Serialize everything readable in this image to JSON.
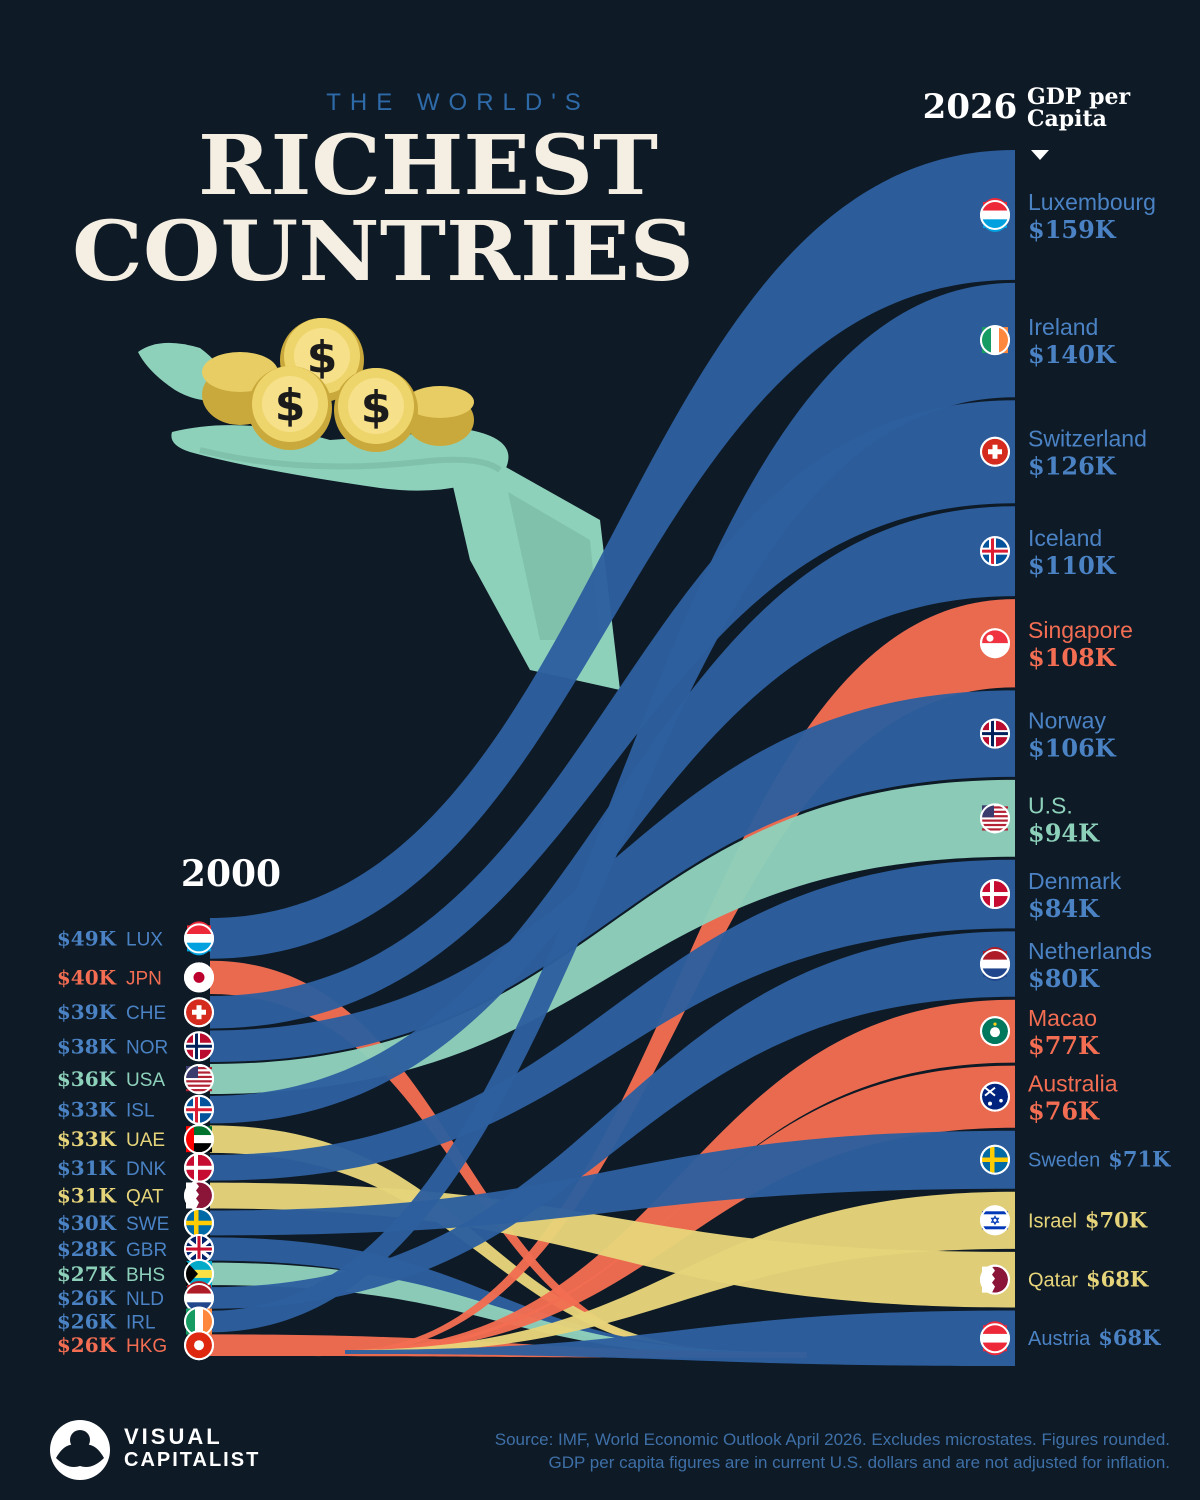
{
  "header": {
    "kicker": "THE WORLD'S",
    "title_line1": "RICHEST",
    "title_line2": "COUNTRIES"
  },
  "labels": {
    "year_2000": "2000",
    "year_2026": "2026",
    "gdp_line1": "GDP per",
    "gdp_line2": "Capita"
  },
  "colors": {
    "background": "#0e1a26",
    "blue": "#2d5f9e",
    "orange": "#f26d52",
    "mint": "#8ed1bb",
    "yellow": "#e6d47a",
    "title": "#f4efe2",
    "kicker": "#2f6aa8"
  },
  "chart_data": {
    "type": "bump",
    "title": "THE WORLD'S RICHEST COUNTRIES",
    "unit": "GDP per Capita",
    "periods": [
      "2000",
      "2026"
    ],
    "left": [
      {
        "code": "LUX",
        "label": "$49K",
        "value": 49,
        "color": "blue",
        "flag": "luxembourg-flag"
      },
      {
        "code": "JPN",
        "label": "$40K",
        "value": 40,
        "color": "orange",
        "flag": "japan-flag"
      },
      {
        "code": "CHE",
        "label": "$39K",
        "value": 39,
        "color": "blue",
        "flag": "switzerland-flag"
      },
      {
        "code": "NOR",
        "label": "$38K",
        "value": 38,
        "color": "blue",
        "flag": "norway-flag"
      },
      {
        "code": "USA",
        "label": "$36K",
        "value": 36,
        "color": "mint",
        "flag": "usa-flag"
      },
      {
        "code": "ISL",
        "label": "$33K",
        "value": 33,
        "color": "blue",
        "flag": "iceland-flag"
      },
      {
        "code": "UAE",
        "label": "$33K",
        "value": 33,
        "color": "yellow",
        "flag": "uae-flag"
      },
      {
        "code": "DNK",
        "label": "$31K",
        "value": 31,
        "color": "blue",
        "flag": "denmark-flag"
      },
      {
        "code": "QAT",
        "label": "$31K",
        "value": 31,
        "color": "yellow",
        "flag": "qatar-flag"
      },
      {
        "code": "SWE",
        "label": "$30K",
        "value": 30,
        "color": "blue",
        "flag": "sweden-flag"
      },
      {
        "code": "GBR",
        "label": "$28K",
        "value": 28,
        "color": "blue",
        "flag": "uk-flag"
      },
      {
        "code": "BHS",
        "label": "$27K",
        "value": 27,
        "color": "mint",
        "flag": "bahamas-flag"
      },
      {
        "code": "NLD",
        "label": "$26K",
        "value": 26,
        "color": "blue",
        "flag": "netherlands-flag"
      },
      {
        "code": "IRL",
        "label": "$26K",
        "value": 26,
        "color": "blue",
        "flag": "ireland-flag"
      },
      {
        "code": "HKG",
        "label": "$26K",
        "value": 26,
        "color": "orange",
        "flag": "hongkong-flag"
      }
    ],
    "right": [
      {
        "name": "Luxembourg",
        "label": "$159K",
        "value": 159,
        "color": "blue",
        "flag": "luxembourg-flag"
      },
      {
        "name": "Ireland",
        "label": "$140K",
        "value": 140,
        "color": "blue",
        "flag": "ireland-flag"
      },
      {
        "name": "Switzerland",
        "label": "$126K",
        "value": 126,
        "color": "blue",
        "flag": "switzerland-flag"
      },
      {
        "name": "Iceland",
        "label": "$110K",
        "value": 110,
        "color": "blue",
        "flag": "iceland-flag"
      },
      {
        "name": "Singapore",
        "label": "$108K",
        "value": 108,
        "color": "orange",
        "flag": "singapore-flag"
      },
      {
        "name": "Norway",
        "label": "$106K",
        "value": 106,
        "color": "blue",
        "flag": "norway-flag"
      },
      {
        "name": "U.S.",
        "label": "$94K",
        "value": 94,
        "color": "mint",
        "flag": "usa-flag"
      },
      {
        "name": "Denmark",
        "label": "$84K",
        "value": 84,
        "color": "blue",
        "flag": "denmark-flag"
      },
      {
        "name": "Netherlands",
        "label": "$80K",
        "value": 80,
        "color": "blue",
        "flag": "netherlands-flag"
      },
      {
        "name": "Macao",
        "label": "$77K",
        "value": 77,
        "color": "orange",
        "flag": "macao-flag"
      },
      {
        "name": "Australia",
        "label": "$76K",
        "value": 76,
        "color": "orange",
        "flag": "australia-flag"
      },
      {
        "name": "Sweden",
        "label": "$71K",
        "value": 71,
        "color": "blue",
        "flag": "sweden-flag"
      },
      {
        "name": "Israel",
        "label": "$70K",
        "value": 70,
        "color": "yellow",
        "flag": "israel-flag"
      },
      {
        "name": "Qatar",
        "label": "$68K",
        "value": 68,
        "color": "yellow",
        "flag": "qatar-flag"
      },
      {
        "name": "Austria",
        "label": "$68K",
        "value": 68,
        "color": "blue",
        "flag": "austria-flag"
      }
    ]
  },
  "footer": {
    "brand_line1": "VISUAL",
    "brand_line2": "CAPITALIST",
    "source_line1": "Source: IMF, World Economic Outlook April 2026. Excludes microstates. Figures rounded.",
    "source_line2": "GDP per capita figures are in current U.S. dollars and are not adjusted for inflation."
  }
}
